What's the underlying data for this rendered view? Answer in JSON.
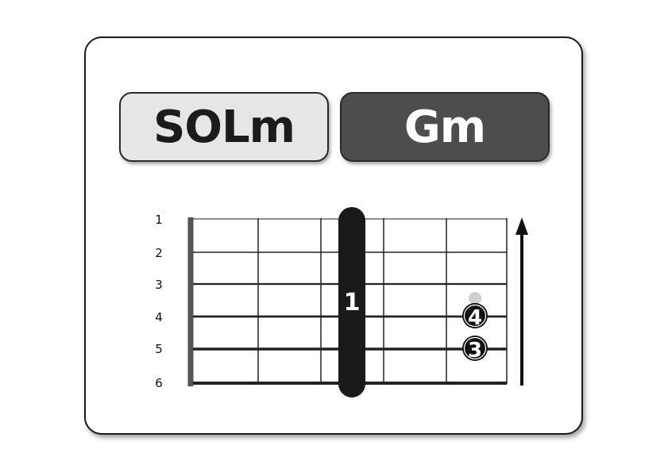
{
  "chord": {
    "latin_name": "SOLm",
    "english_name": "Gm"
  },
  "diagram": {
    "string_labels": [
      "1",
      "2",
      "3",
      "4",
      "5",
      "6"
    ],
    "barre": {
      "finger": "1",
      "fret": 3,
      "strings": [
        1,
        6
      ]
    },
    "fingers": [
      {
        "finger": "4",
        "string": 4,
        "fret": 5
      },
      {
        "finger": "3",
        "string": 5,
        "fret": 5
      }
    ],
    "muted_marker": {
      "string": 3,
      "fret": 5
    },
    "strum_direction": "up"
  }
}
